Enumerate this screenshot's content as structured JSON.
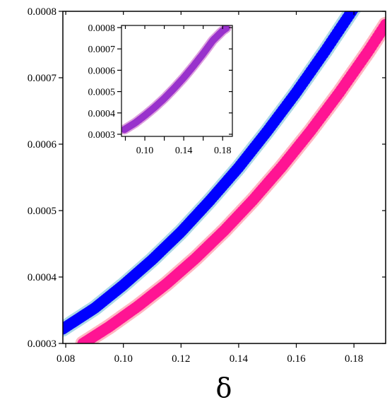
{
  "chart_data": [
    {
      "type": "scatter",
      "title": "",
      "xlabel": "δ",
      "ylabel": "",
      "xlim": [
        0.079,
        0.191
      ],
      "ylim": [
        0.0003,
        0.0008
      ],
      "xticks": [
        0.08,
        0.1,
        0.12,
        0.14,
        0.16,
        0.18
      ],
      "xtick_labels": [
        "0.08",
        "0.10",
        "0.12",
        "0.14",
        "0.16",
        "0.18"
      ],
      "yticks": [
        0.0003,
        0.0004,
        0.0005,
        0.0006,
        0.0007,
        0.0008
      ],
      "ytick_labels": [
        "0.0003",
        "0.0004",
        "0.0005",
        "0.0006",
        "0.0007",
        "0.0008"
      ],
      "grid": false,
      "legend": "none",
      "series": [
        {
          "color": "#add8e6",
          "marker_size": 11,
          "x": [
            0.079,
            0.09,
            0.1,
            0.11,
            0.12,
            0.13,
            0.14,
            0.15,
            0.16,
            0.17,
            0.18,
            0.185
          ],
          "y": [
            0.000322,
            0.000353,
            0.000388,
            0.000426,
            0.000468,
            0.000515,
            0.000565,
            0.00062,
            0.000678,
            0.00074,
            0.000805,
            0.000838
          ]
        },
        {
          "color": "#0000ff",
          "marker_size": 8,
          "x": [
            0.079,
            0.09,
            0.1,
            0.11,
            0.12,
            0.13,
            0.14,
            0.15,
            0.16,
            0.17,
            0.18,
            0.185
          ],
          "y": [
            0.000322,
            0.000353,
            0.000388,
            0.000426,
            0.000468,
            0.000515,
            0.000565,
            0.00062,
            0.000678,
            0.00074,
            0.000805,
            0.000838
          ]
        },
        {
          "color": "#ffb6c1",
          "marker_size": 11,
          "x": [
            0.086,
            0.095,
            0.105,
            0.115,
            0.125,
            0.135,
            0.145,
            0.155,
            0.165,
            0.175,
            0.185,
            0.191
          ],
          "y": [
            0.0003,
            0.000325,
            0.000356,
            0.00039,
            0.000428,
            0.00047,
            0.000516,
            0.000566,
            0.00062,
            0.000678,
            0.00074,
            0.00078
          ]
        },
        {
          "color": "#ff1493",
          "marker_size": 8,
          "x": [
            0.086,
            0.095,
            0.105,
            0.115,
            0.125,
            0.135,
            0.145,
            0.155,
            0.165,
            0.175,
            0.185,
            0.191
          ],
          "y": [
            0.0003,
            0.000325,
            0.000356,
            0.00039,
            0.000428,
            0.00047,
            0.000516,
            0.000566,
            0.00062,
            0.000678,
            0.00074,
            0.00078
          ]
        }
      ]
    },
    {
      "type": "scatter",
      "title": "",
      "xlabel": "",
      "ylabel": "",
      "xlim": [
        0.076,
        0.19
      ],
      "ylim": [
        0.00029,
        0.00081
      ],
      "xticks": [
        0.08,
        0.1,
        0.12,
        0.14,
        0.16,
        0.18
      ],
      "xtick_labels": [
        "0.10",
        "0.14",
        "0.18"
      ],
      "xtick_labeled": [
        0.1,
        0.14,
        0.18
      ],
      "yticks": [
        0.0003,
        0.0004,
        0.0005,
        0.0006,
        0.0007,
        0.0008
      ],
      "ytick_labels": [
        "0.0003",
        "0.0004",
        "0.0005",
        "0.0006",
        "0.0007",
        "0.0008"
      ],
      "grid": false,
      "legend": "none",
      "series": [
        {
          "color": "#dda0dd",
          "marker_size": 7,
          "x": [
            0.079,
            0.09,
            0.1,
            0.11,
            0.12,
            0.13,
            0.14,
            0.15,
            0.16,
            0.17,
            0.18,
            0.184
          ],
          "y": [
            0.000322,
            0.000353,
            0.000388,
            0.000426,
            0.000468,
            0.000515,
            0.000565,
            0.00062,
            0.000678,
            0.00074,
            0.000785,
            0.000798
          ]
        },
        {
          "color": "#9932cc",
          "marker_size": 5,
          "x": [
            0.079,
            0.09,
            0.1,
            0.11,
            0.12,
            0.13,
            0.14,
            0.15,
            0.16,
            0.17,
            0.18,
            0.184
          ],
          "y": [
            0.000322,
            0.000353,
            0.000388,
            0.000426,
            0.000468,
            0.000515,
            0.000565,
            0.00062,
            0.000678,
            0.00074,
            0.000785,
            0.000798
          ]
        }
      ]
    }
  ]
}
